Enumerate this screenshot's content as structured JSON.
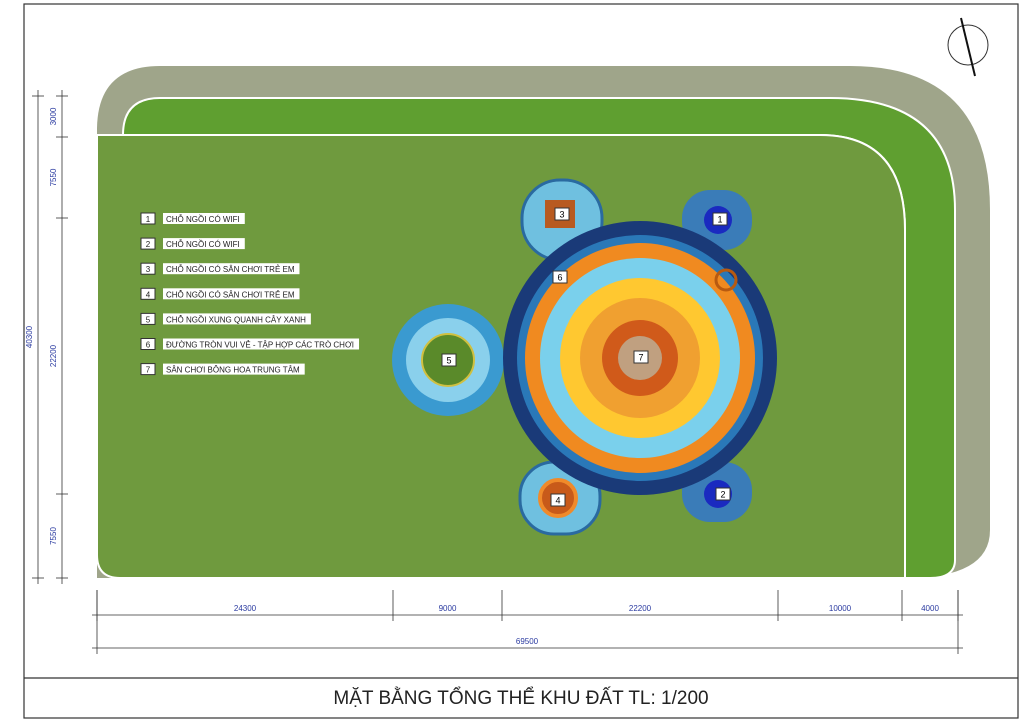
{
  "legend": [
    {
      "number": "1",
      "label": "CHỖ NGỒI CÓ WIFI"
    },
    {
      "number": "2",
      "label": "CHỖ NGỒI CÓ WIFI"
    },
    {
      "number": "3",
      "label": "CHỖ NGỒI CÓ SÂN CHƠI TRẺ EM"
    },
    {
      "number": "4",
      "label": "CHỖ NGỒI CÓ SÂN CHƠI TRẺ EM"
    },
    {
      "number": "5",
      "label": "CHỖ NGỒI XUNG QUANH CÂY XANH"
    },
    {
      "number": "6",
      "label": "ĐƯỜNG TRÒN VUI VẺ - TẬP HỢP CÁC TRÒ CHƠI"
    },
    {
      "number": "7",
      "label": "SÂN CHƠI BÔNG HOA TRUNG TÂM"
    }
  ],
  "dimensions": {
    "vertical": [
      "3000",
      "7550",
      "22200",
      "7550"
    ],
    "vertical_total": "40300",
    "horizontal": [
      "24300",
      "9000",
      "22200",
      "10000",
      "4000"
    ],
    "horizontal_total": "69500"
  },
  "title": "MẶT BẰNG TỔNG THỂ KHU ĐẤT TL: 1/200"
}
